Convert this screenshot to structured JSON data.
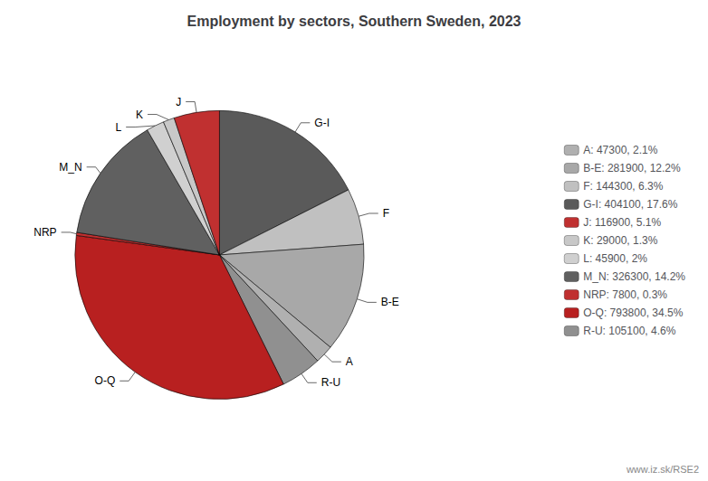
{
  "chart_data": {
    "type": "pie",
    "title": "Employment by sectors, Southern Sweden, 2023",
    "categories": [
      "G-I",
      "F",
      "B-E",
      "A",
      "R-U",
      "O-Q",
      "NRP",
      "M_N",
      "L",
      "K",
      "J"
    ],
    "values": [
      404100,
      144300,
      281900,
      47300,
      105100,
      793800,
      7800,
      326300,
      45900,
      29000,
      116900
    ],
    "colors": [
      "#5a5a5a",
      "#c0c0c0",
      "#a8a8a8",
      "#b0b0b0",
      "#909090",
      "#b82020",
      "#c03030",
      "#606060",
      "#d0d0d0",
      "#c8c8c8",
      "#c03030"
    ],
    "legend": "right",
    "legend_order": [
      "A",
      "B-E",
      "F",
      "G-I",
      "J",
      "K",
      "L",
      "M_N",
      "NRP",
      "O-Q",
      "R-U"
    ],
    "legend_colors": [
      "#b0b0b0",
      "#a8a8a8",
      "#c0c0c0",
      "#5a5a5a",
      "#c03030",
      "#c8c8c8",
      "#d0d0d0",
      "#606060",
      "#c03030",
      "#b82020",
      "#909090"
    ],
    "legend_labels": [
      "A: 47300, 2.1%",
      "B-E: 281900, 12.2%",
      "F: 144300, 6.3%",
      "G-I: 404100, 17.6%",
      "J: 116900, 5.1%",
      "K: 29000, 1.3%",
      "L: 45900, 2%",
      "M_N: 326300, 14.2%",
      "NRP: 7800, 0.3%",
      "O-Q: 793800, 34.5%",
      "R-U: 105100, 4.6%"
    ],
    "watermark": "www.iz.sk/RSE2"
  }
}
